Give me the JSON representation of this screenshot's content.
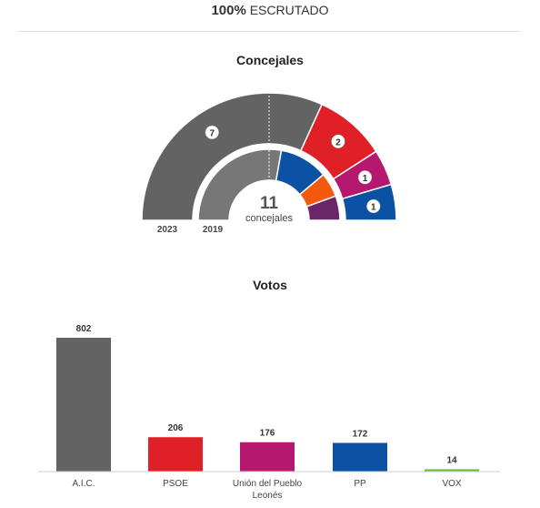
{
  "header": {
    "scrutiny_pct": "100%",
    "scrutiny_label": "ESCRUTADO"
  },
  "seats": {
    "title": "Concejales",
    "total": "11",
    "total_label": "concejales",
    "label_2023": "2023",
    "label_2019": "2019"
  },
  "votes": {
    "title": "Votos"
  },
  "colors": {
    "aic": "#636363",
    "aic_2019": "#777777",
    "psoe": "#e02027",
    "upl": "#b5186e",
    "pp": "#0b52a4",
    "vox": "#63be3e",
    "cs": "#f35a0d",
    "podemos": "#6b2668"
  },
  "chart_data": [
    {
      "type": "pie",
      "title": "Concejales",
      "variant": "parliament-semicircle",
      "rings": [
        {
          "name": "2023",
          "slices": [
            {
              "party": "A.I.C.",
              "seats": 7,
              "color": "#636363"
            },
            {
              "party": "PSOE",
              "seats": 2,
              "color": "#e02027"
            },
            {
              "party": "Unión del Pueblo Leonés",
              "seats": 1,
              "color": "#b5186e"
            },
            {
              "party": "PP",
              "seats": 1,
              "color": "#0b52a4"
            }
          ]
        },
        {
          "name": "2019",
          "slices": [
            {
              "seats": 5,
              "color": "#777777"
            },
            {
              "seats": 2,
              "color": "#0b52a4"
            },
            {
              "seats": 1,
              "color": "#f35a0d"
            },
            {
              "seats": 1,
              "color": "#6b2668"
            }
          ]
        }
      ]
    },
    {
      "type": "bar",
      "title": "Votos",
      "categories": [
        "A.I.C.",
        "PSOE",
        "Unión del Pueblo Leonés",
        "PP",
        "VOX"
      ],
      "category_lines": [
        [
          "A.I.C."
        ],
        [
          "PSOE"
        ],
        [
          "Unión del Pueblo",
          "Leonés"
        ],
        [
          "PP"
        ],
        [
          "VOX"
        ]
      ],
      "values": [
        802,
        206,
        176,
        172,
        14
      ],
      "value_labels": [
        "802",
        "206",
        "176",
        "172",
        "14"
      ],
      "colors": [
        "#636363",
        "#e02027",
        "#b5186e",
        "#0b52a4",
        "#63be3e"
      ],
      "ylim": [
        0,
        802
      ],
      "grid": false
    }
  ]
}
